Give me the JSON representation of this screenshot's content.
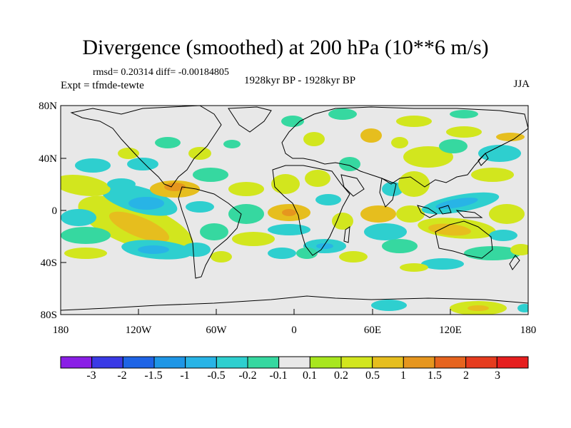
{
  "title": "Divergence (smoothed) at 200 hPa (10**6 m/s)",
  "stats": "rmsd= 0.20314 diff= -0.00184805",
  "experiment": "Expt = tfmde-tewte",
  "period": "1928kyr BP - 1928kyr BP",
  "season": "JJA",
  "axes": {
    "lat_labels": [
      "80N",
      "40N",
      "0",
      "40S",
      "80S"
    ],
    "lat_values": [
      80,
      40,
      0,
      -40,
      -80
    ],
    "lon_labels": [
      "180",
      "120W",
      "60W",
      "0",
      "60E",
      "120E",
      "180"
    ],
    "lon_values": [
      -180,
      -120,
      -60,
      0,
      60,
      120,
      180
    ]
  },
  "colorbar": {
    "labels": [
      "-3",
      "-2",
      "-1.5",
      "-1",
      "-0.5",
      "-0.2",
      "-0.1",
      "0.1",
      "0.2",
      "0.5",
      "1",
      "1.5",
      "2",
      "3"
    ],
    "colors": [
      "#8a1ee6",
      "#3a3ae6",
      "#1e64e6",
      "#1e96e6",
      "#28b4e6",
      "#2ecfcf",
      "#36d8a0",
      "#e8e8e8",
      "#a8e61e",
      "#d2e61e",
      "#e6be1e",
      "#e6961e",
      "#e6641e",
      "#e63c1e",
      "#e61e1e"
    ]
  },
  "map_background": "#e8e8e8"
}
